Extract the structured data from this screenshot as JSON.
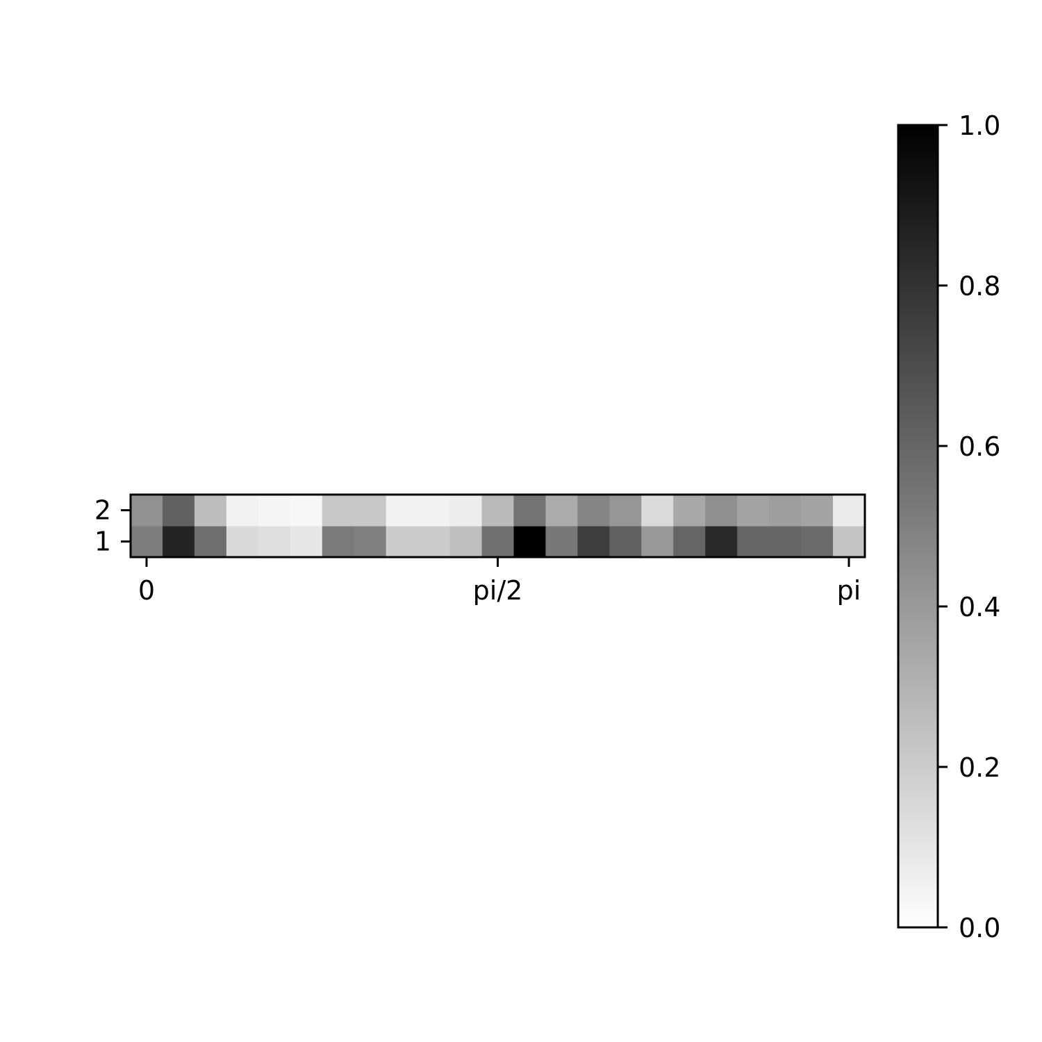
{
  "chart_data": {
    "type": "heatmap",
    "title": "",
    "xlabel": "",
    "ylabel": "",
    "x_ticks": [
      {
        "label": "0",
        "value": 0.0
      },
      {
        "label": "pi/2",
        "value": 1.5708
      },
      {
        "label": "pi",
        "value": 3.1416
      }
    ],
    "y_ticks": [
      {
        "label": "1",
        "row": 1
      },
      {
        "label": "2",
        "row": 2
      }
    ],
    "xlim": [
      -0.0714,
      3.213
    ],
    "rows": [
      1,
      2
    ],
    "values": [
      [
        0.51,
        0.86,
        0.57,
        0.15,
        0.13,
        0.1,
        0.52,
        0.5,
        0.2,
        0.2,
        0.25,
        0.56,
        1.0,
        0.53,
        0.76,
        0.62,
        0.4,
        0.6,
        0.84,
        0.6,
        0.6,
        0.58,
        0.23
      ],
      [
        0.43,
        0.62,
        0.26,
        0.05,
        0.04,
        0.03,
        0.22,
        0.22,
        0.05,
        0.05,
        0.07,
        0.27,
        0.55,
        0.33,
        0.48,
        0.41,
        0.14,
        0.34,
        0.44,
        0.36,
        0.38,
        0.36,
        0.08
      ]
    ],
    "colormap": "gray_r",
    "colorbar": {
      "range": [
        0,
        1
      ],
      "ticks": [
        "0.0",
        "0.2",
        "0.4",
        "0.6",
        "0.8",
        "1.0"
      ]
    },
    "grid": false,
    "legend": "none"
  }
}
